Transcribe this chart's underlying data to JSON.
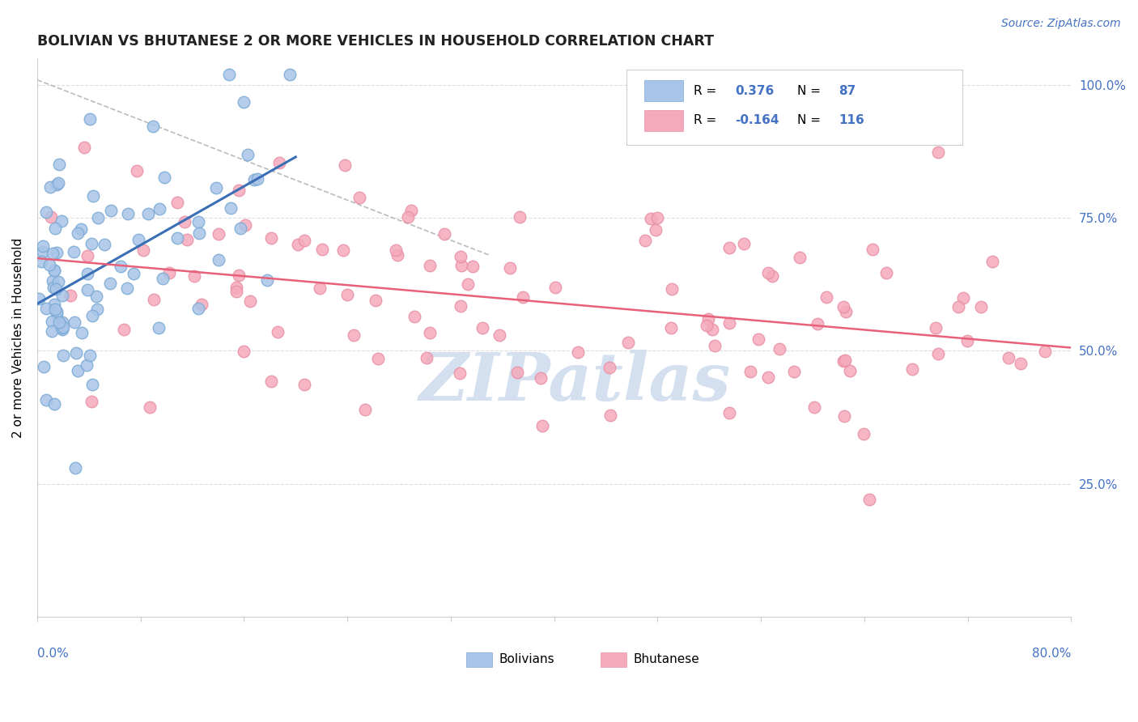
{
  "title": "BOLIVIAN VS BHUTANESE 2 OR MORE VEHICLES IN HOUSEHOLD CORRELATION CHART",
  "source": "Source: ZipAtlas.com",
  "ylabel": "2 or more Vehicles in Household",
  "right_yticks": [
    "25.0%",
    "50.0%",
    "75.0%",
    "100.0%"
  ],
  "right_ytick_vals": [
    0.25,
    0.5,
    0.75,
    1.0
  ],
  "xlim": [
    0.0,
    0.8
  ],
  "ylim": [
    0.0,
    1.05
  ],
  "bolivian_R": 0.376,
  "bolivian_N": 87,
  "bhutanese_R": -0.164,
  "bhutanese_N": 116,
  "blue_color": "#A8C4E8",
  "pink_color": "#F5AABB",
  "blue_edge_color": "#7BAAD4",
  "pink_edge_color": "#E890A5",
  "blue_line_color": "#3A6EB5",
  "pink_line_color": "#E8607A",
  "ref_line_color": "#BBBBBB",
  "watermark_color": "#D0DDEF",
  "grid_color": "#DDDDDD",
  "right_label_color": "#4472C4",
  "title_color": "#222222",
  "source_color": "#4472C4"
}
